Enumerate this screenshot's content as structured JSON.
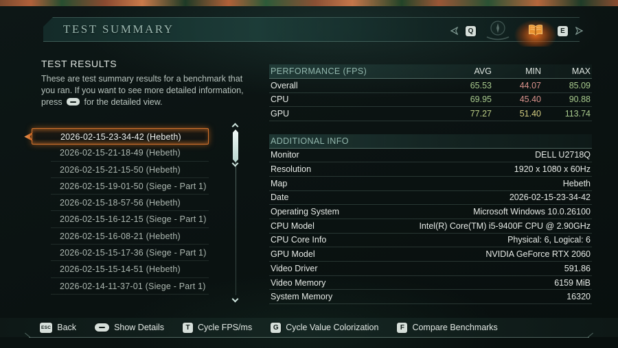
{
  "title": "TEST SUMMARY",
  "header": {
    "prev_key": "Q",
    "next_key": "E",
    "tabs": [
      {
        "name": "compass-tab",
        "active": false
      },
      {
        "name": "book-tab",
        "active": true
      }
    ]
  },
  "left": {
    "heading": "TEST RESULTS",
    "desc_part1": "These are test summary results for a benchmark that you ran. If you want to see more detailed information, press",
    "desc_part2": "for the detailed view.",
    "results": [
      {
        "label": "2026-02-15-23-34-42 (Hebeth)",
        "selected": true
      },
      {
        "label": "2026-02-15-21-18-49 (Hebeth)",
        "selected": false
      },
      {
        "label": "2026-02-15-21-15-50 (Hebeth)",
        "selected": false
      },
      {
        "label": "2026-02-15-19-01-50 (Siege - Part 1)",
        "selected": false
      },
      {
        "label": "2026-02-15-18-57-56 (Hebeth)",
        "selected": false
      },
      {
        "label": "2026-02-15-16-12-15 (Siege - Part 1)",
        "selected": false
      },
      {
        "label": "2026-02-15-16-08-21 (Hebeth)",
        "selected": false
      },
      {
        "label": "2026-02-15-15-17-36 (Siege - Part 1)",
        "selected": false
      },
      {
        "label": "2026-02-15-15-14-51 (Hebeth)",
        "selected": false
      },
      {
        "label": "2026-02-14-11-37-01 (Siege - Part 1)",
        "selected": false
      }
    ]
  },
  "performance": {
    "header": "PERFORMANCE (FPS)",
    "columns": [
      "AVG",
      "MIN",
      "MAX"
    ],
    "rows": [
      {
        "label": "Overall",
        "values": [
          {
            "text": "65.53",
            "color": "green"
          },
          {
            "text": "44.07",
            "color": "red"
          },
          {
            "text": "85.09",
            "color": "green"
          }
        ]
      },
      {
        "label": "CPU",
        "values": [
          {
            "text": "69.95",
            "color": "green"
          },
          {
            "text": "45.40",
            "color": "red"
          },
          {
            "text": "90.88",
            "color": "green"
          }
        ]
      },
      {
        "label": "GPU",
        "values": [
          {
            "text": "77.27",
            "color": "lime"
          },
          {
            "text": "51.40",
            "color": "yellow"
          },
          {
            "text": "113.74",
            "color": "green"
          }
        ]
      }
    ]
  },
  "additional_info": {
    "header": "ADDITIONAL INFO",
    "rows": [
      {
        "label": "Monitor",
        "value": "DELL U2718Q"
      },
      {
        "label": "Resolution",
        "value": "1920 x 1080 x 60Hz"
      },
      {
        "label": "Map",
        "value": "Hebeth"
      },
      {
        "label": "Date",
        "value": "2026-02-15-23-34-42"
      },
      {
        "label": "Operating System",
        "value": "Microsoft Windows 10.0.26100"
      },
      {
        "label": "CPU Model",
        "value": "Intel(R) Core(TM) i5-9400F CPU @ 2.90GHz"
      },
      {
        "label": "CPU Core Info",
        "value": "Physical: 6, Logical: 6"
      },
      {
        "label": "GPU Model",
        "value": "NVIDIA GeForce RTX 2060"
      },
      {
        "label": "Video Driver",
        "value": "591.86"
      },
      {
        "label": "Video Memory",
        "value": "6159 MiB"
      },
      {
        "label": "System Memory",
        "value": "16320"
      }
    ]
  },
  "footer": {
    "actions": [
      {
        "key": "ESC",
        "type": "esc",
        "label": "Back"
      },
      {
        "key": "",
        "type": "wide",
        "label": "Show Details"
      },
      {
        "key": "T",
        "type": "square",
        "label": "Cycle FPS/ms"
      },
      {
        "key": "G",
        "type": "square",
        "label": "Cycle Value Colorization"
      },
      {
        "key": "F",
        "type": "square",
        "label": "Compare Benchmarks"
      }
    ]
  },
  "colors": {
    "green": "#a9cb8e",
    "red": "#db938d",
    "yellow": "#d6cf82",
    "lime": "#bdcf87",
    "accent_orange": "#e07b2c",
    "section_header": "#93b8ae"
  }
}
